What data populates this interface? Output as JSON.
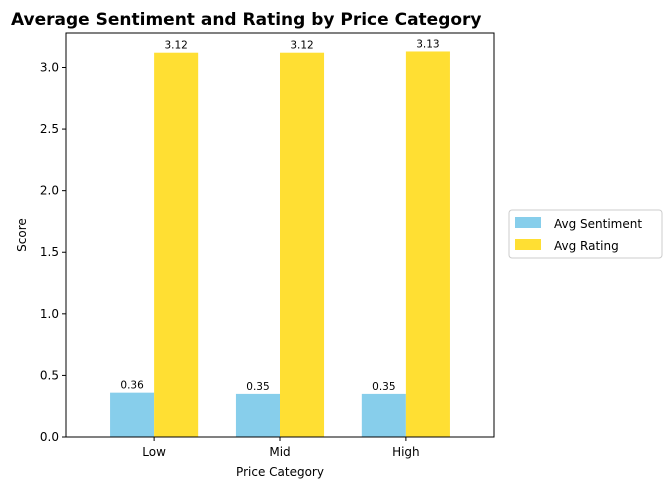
{
  "chart_data": {
    "type": "bar",
    "title": "Average Sentiment and Rating by Price Category",
    "xlabel": "Price Category",
    "ylabel": "Score",
    "categories": [
      "Low",
      "Mid",
      "High"
    ],
    "series": [
      {
        "name": "Avg Sentiment",
        "values": [
          0.36,
          0.35,
          0.35
        ],
        "labels": [
          "0.36",
          "0.35",
          "0.35"
        ],
        "color": "#87CEEB"
      },
      {
        "name": "Avg Rating",
        "values": [
          3.12,
          3.12,
          3.13
        ],
        "labels": [
          "3.12",
          "3.12",
          "3.13"
        ],
        "color": "#FFDF33"
      }
    ],
    "ylim": [
      0,
      3.28
    ],
    "yticks": [
      "0.0",
      "0.5",
      "1.0",
      "1.5",
      "2.0",
      "2.5",
      "3.0"
    ],
    "grid": false,
    "legend": "right-outside"
  }
}
